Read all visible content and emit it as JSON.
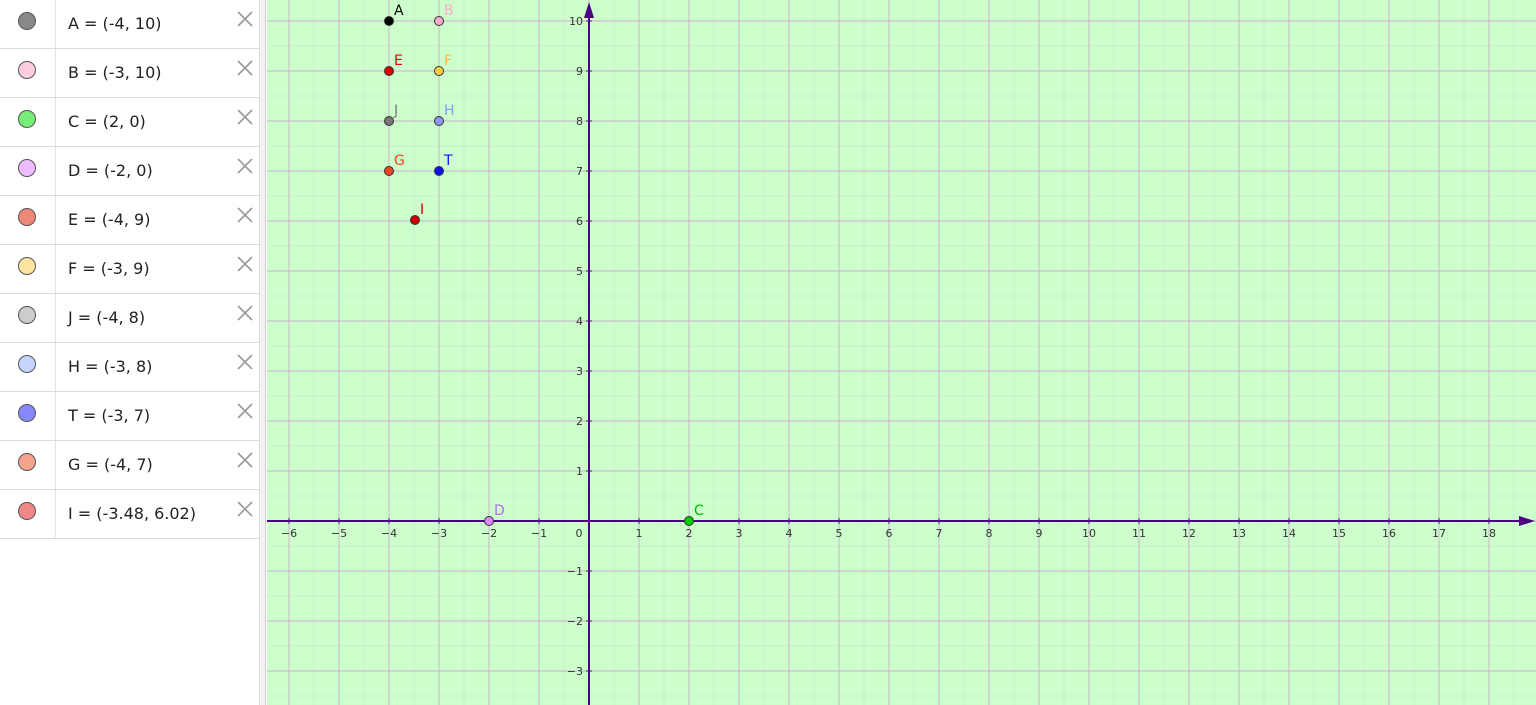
{
  "algebra": {
    "items": [
      {
        "label": "A = (-4, 10)",
        "color": "#888888"
      },
      {
        "label": "B = (-3, 10)",
        "color": "#ffccdd"
      },
      {
        "label": "C = (2, 0)",
        "color": "#77ee77"
      },
      {
        "label": "D = (-2, 0)",
        "color": "#eebbff"
      },
      {
        "label": "E = (-4, 9)",
        "color": "#f08878"
      },
      {
        "label": "F = (-3, 9)",
        "color": "#ffe4a0"
      },
      {
        "label": "J = (-4, 8)",
        "color": "#cccccc"
      },
      {
        "label": "H = (-3, 8)",
        "color": "#c4d4ff"
      },
      {
        "label": "T = (-3, 7)",
        "color": "#8888ff"
      },
      {
        "label": "G = (-4, 7)",
        "color": "#f4a48c"
      },
      {
        "label": "I = (-3.48, 6.02)",
        "color": "#ee8888"
      }
    ],
    "delete_icon": "close-icon"
  },
  "graph": {
    "background": "#ccffcc",
    "axis_color": "#4a0080",
    "grid_color": "#c8a6c8",
    "x_ticks": [
      "−6",
      "−5",
      "−4",
      "−3",
      "−2",
      "−1",
      "0",
      "1",
      "2",
      "3",
      "4",
      "5",
      "6",
      "7",
      "8",
      "9",
      "10",
      "11",
      "12",
      "13",
      "14",
      "15",
      "16",
      "17",
      "18"
    ],
    "y_ticks": [
      "−3",
      "−2",
      "−1",
      "1",
      "2",
      "3",
      "4",
      "5",
      "6",
      "7",
      "8",
      "9",
      "10"
    ],
    "points": [
      {
        "name": "A",
        "x": -4,
        "y": 10,
        "fill": "#000000",
        "label_color": "#000000"
      },
      {
        "name": "B",
        "x": -3,
        "y": 10,
        "fill": "#ffaacc",
        "label_color": "#ffaacc"
      },
      {
        "name": "E",
        "x": -4,
        "y": 9,
        "fill": "#dd0000",
        "label_color": "#dd0000"
      },
      {
        "name": "F",
        "x": -3,
        "y": 9,
        "fill": "#ffcc44",
        "label_color": "#ffbb33"
      },
      {
        "name": "J",
        "x": -4,
        "y": 8,
        "fill": "#777777",
        "label_color": "#777777"
      },
      {
        "name": "H",
        "x": -3,
        "y": 8,
        "fill": "#8899ee",
        "label_color": "#8899ee"
      },
      {
        "name": "G",
        "x": -4,
        "y": 7,
        "fill": "#ee4422",
        "label_color": "#ee4422"
      },
      {
        "name": "T",
        "x": -3,
        "y": 7,
        "fill": "#1111ee",
        "label_color": "#1111ee"
      },
      {
        "name": "I",
        "x": -3.48,
        "y": 6.02,
        "fill": "#cc0000",
        "label_color": "#cc0000"
      },
      {
        "name": "D",
        "x": -2,
        "y": 0,
        "fill": "#dd88ff",
        "label_color": "#bb66ee"
      },
      {
        "name": "C",
        "x": 2,
        "y": 0,
        "fill": "#00cc00",
        "label_color": "#00bb00"
      }
    ]
  }
}
